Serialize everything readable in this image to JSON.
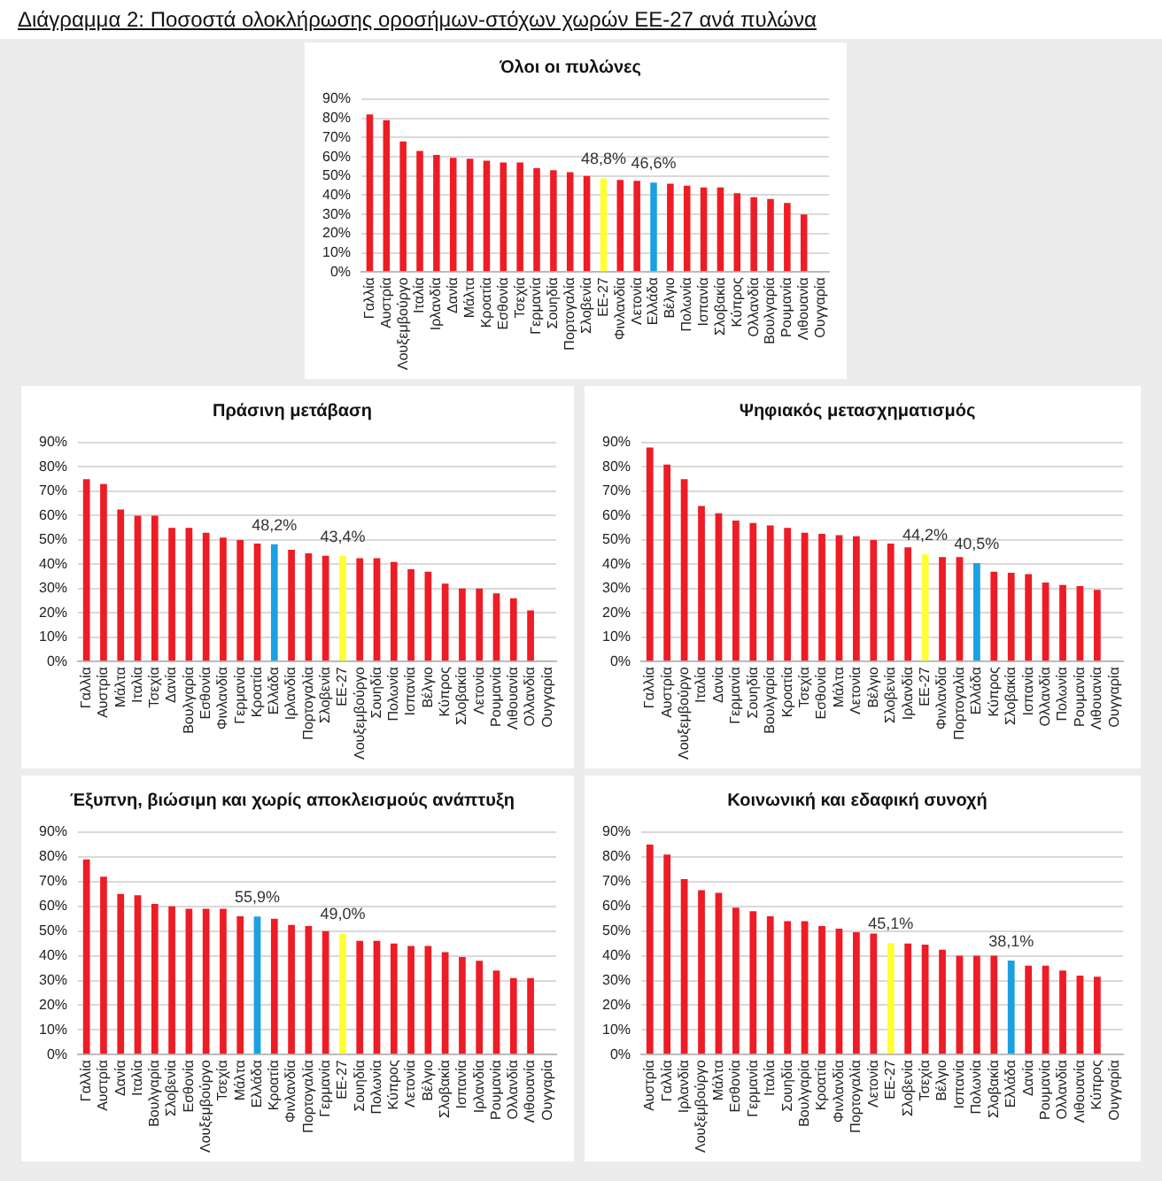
{
  "chart_data": [
    {
      "type": "bar",
      "title": "Όλοι οι πυλώνες",
      "annotations": [
        "Διάγραμμα 2: Ποσοστά ολοκλήρωσης οροσήμων-στόχων χωρών ΕΕ-27 ανά πυλώνα"
      ],
      "categories": [
        "Γαλλία",
        "Αυστρία",
        "Λουξεμβούργο",
        "Ιταλία",
        "Ιρλανδία",
        "Δανία",
        "Μάλτα",
        "Κροατία",
        "Εσθονία",
        "Τσεχία",
        "Γερμανία",
        "Σουηδία",
        "Πορτογαλία",
        "Σλοβενία",
        "ΕΕ-27",
        "Φινλανδία",
        "Λετονία",
        "Ελλάδα",
        "Βέλγιο",
        "Πολωνία",
        "Ισπανία",
        "Σλοβακία",
        "Κύπρος",
        "Ολλανδία",
        "Βουλγαρία",
        "Ρουμανία",
        "Λιθουανία",
        "Ουγγαρία"
      ],
      "values": [
        82,
        79,
        68,
        63,
        61,
        59.5,
        59,
        58,
        57,
        57,
        54,
        53,
        52,
        50,
        48.8,
        48,
        47.5,
        46.6,
        46,
        45,
        44,
        44,
        41,
        39,
        38,
        36,
        30,
        0
      ],
      "colors": [
        "#ee1c25",
        "#ee1c25",
        "#ee1c25",
        "#ee1c25",
        "#ee1c25",
        "#ee1c25",
        "#ee1c25",
        "#ee1c25",
        "#ee1c25",
        "#ee1c25",
        "#ee1c25",
        "#ee1c25",
        "#ee1c25",
        "#ee1c25",
        "#ffff33",
        "#ee1c25",
        "#ee1c25",
        "#1ba1e2",
        "#ee1c25",
        "#ee1c25",
        "#ee1c25",
        "#ee1c25",
        "#ee1c25",
        "#ee1c25",
        "#ee1c25",
        "#ee1c25",
        "#ee1c25",
        "#ee1c25"
      ],
      "value_labels": [
        null,
        null,
        null,
        null,
        null,
        null,
        null,
        null,
        null,
        null,
        null,
        null,
        null,
        null,
        "48,8%",
        null,
        null,
        "46,6%",
        null,
        null,
        null,
        null,
        null,
        null,
        null,
        null,
        null,
        null
      ],
      "ylim": [
        0,
        90
      ],
      "yticks": [
        {
          "value": 0,
          "label": "0%"
        },
        {
          "value": 10,
          "label": "10%"
        },
        {
          "value": 20,
          "label": "20%"
        },
        {
          "value": 30,
          "label": "30%"
        },
        {
          "value": 40,
          "label": "40%"
        },
        {
          "value": 50,
          "label": "50%"
        },
        {
          "value": 60,
          "label": "60%"
        },
        {
          "value": 70,
          "label": "70%"
        },
        {
          "value": 80,
          "label": "80%"
        },
        {
          "value": 90,
          "label": "90%"
        }
      ],
      "grid": "y",
      "legend": false
    },
    {
      "type": "bar",
      "title": "Πράσινη μετάβαση",
      "categories": [
        "Γαλλία",
        "Αυστρία",
        "Μάλτα",
        "Ιταλία",
        "Τσεχία",
        "Δανία",
        "Βουλγαρία",
        "Εσθονία",
        "Φινλανδία",
        "Γερμανία",
        "Κροατία",
        "Ελλάδα",
        "Ιρλανδία",
        "Πορτογαλία",
        "Σλοβενία",
        "ΕΕ-27",
        "Λουξεμβούργο",
        "Σουηδία",
        "Πολωνία",
        "Ισπανία",
        "Βέλγιο",
        "Κύπρος",
        "Σλοβακία",
        "Λετονία",
        "Ρουμανία",
        "Λιθουανία",
        "Ολλανδία",
        "Ουγγαρία"
      ],
      "values": [
        75,
        73,
        62.5,
        60,
        60,
        55,
        55,
        53,
        51,
        50,
        48.5,
        48.2,
        46,
        44.5,
        43.5,
        43.4,
        42.5,
        42.5,
        41,
        38,
        37,
        32,
        30,
        30,
        28,
        26,
        21,
        0
      ],
      "colors": [
        "#ee1c25",
        "#ee1c25",
        "#ee1c25",
        "#ee1c25",
        "#ee1c25",
        "#ee1c25",
        "#ee1c25",
        "#ee1c25",
        "#ee1c25",
        "#ee1c25",
        "#ee1c25",
        "#1ba1e2",
        "#ee1c25",
        "#ee1c25",
        "#ee1c25",
        "#ffff33",
        "#ee1c25",
        "#ee1c25",
        "#ee1c25",
        "#ee1c25",
        "#ee1c25",
        "#ee1c25",
        "#ee1c25",
        "#ee1c25",
        "#ee1c25",
        "#ee1c25",
        "#ee1c25",
        "#ee1c25"
      ],
      "value_labels": [
        null,
        null,
        null,
        null,
        null,
        null,
        null,
        null,
        null,
        null,
        null,
        "48,2%",
        null,
        null,
        null,
        "43,4%",
        null,
        null,
        null,
        null,
        null,
        null,
        null,
        null,
        null,
        null,
        null,
        null
      ],
      "ylim": [
        0,
        90
      ],
      "yticks": [
        {
          "value": 0,
          "label": "0%"
        },
        {
          "value": 10,
          "label": "10%"
        },
        {
          "value": 20,
          "label": "20%"
        },
        {
          "value": 30,
          "label": "30%"
        },
        {
          "value": 40,
          "label": "40%"
        },
        {
          "value": 50,
          "label": "50%"
        },
        {
          "value": 60,
          "label": "60%"
        },
        {
          "value": 70,
          "label": "70%"
        },
        {
          "value": 80,
          "label": "80%"
        },
        {
          "value": 90,
          "label": "90%"
        }
      ],
      "grid": "y",
      "legend": false
    },
    {
      "type": "bar",
      "title": "Ψηφιακός μετασχηματισμός",
      "categories": [
        "Γαλλία",
        "Αυστρία",
        "Λουξεμβούργο",
        "Ιταλία",
        "Δανία",
        "Γερμανία",
        "Σουηδία",
        "Βουλγαρία",
        "Κροατία",
        "Τσεχία",
        "Εσθονία",
        "Μάλτα",
        "Λετονία",
        "Βέλγιο",
        "Σλοβενία",
        "Ιρλανδία",
        "ΕΕ-27",
        "Φινλανδία",
        "Πορτογαλία",
        "Ελλάδα",
        "Κύπρος",
        "Σλοβακία",
        "Ισπανία",
        "Ολλανδία",
        "Πολωνία",
        "Ρουμανία",
        "Λιθουανία",
        "Ουγγαρία"
      ],
      "values": [
        88,
        81,
        75,
        64,
        61,
        58,
        57,
        56,
        55,
        53,
        52.5,
        52,
        51.5,
        50,
        48.5,
        47,
        44.2,
        43,
        43,
        40.5,
        37,
        36.5,
        36,
        32.5,
        31.5,
        31,
        29.5,
        0
      ],
      "colors": [
        "#ee1c25",
        "#ee1c25",
        "#ee1c25",
        "#ee1c25",
        "#ee1c25",
        "#ee1c25",
        "#ee1c25",
        "#ee1c25",
        "#ee1c25",
        "#ee1c25",
        "#ee1c25",
        "#ee1c25",
        "#ee1c25",
        "#ee1c25",
        "#ee1c25",
        "#ee1c25",
        "#ffff33",
        "#ee1c25",
        "#ee1c25",
        "#1ba1e2",
        "#ee1c25",
        "#ee1c25",
        "#ee1c25",
        "#ee1c25",
        "#ee1c25",
        "#ee1c25",
        "#ee1c25",
        "#ee1c25"
      ],
      "value_labels": [
        null,
        null,
        null,
        null,
        null,
        null,
        null,
        null,
        null,
        null,
        null,
        null,
        null,
        null,
        null,
        null,
        "44,2%",
        null,
        null,
        "40,5%",
        null,
        null,
        null,
        null,
        null,
        null,
        null,
        null
      ],
      "ylim": [
        0,
        90
      ],
      "yticks": [
        {
          "value": 0,
          "label": "0%"
        },
        {
          "value": 10,
          "label": "10%"
        },
        {
          "value": 20,
          "label": "20%"
        },
        {
          "value": 30,
          "label": "30%"
        },
        {
          "value": 40,
          "label": "40%"
        },
        {
          "value": 50,
          "label": "50%"
        },
        {
          "value": 60,
          "label": "60%"
        },
        {
          "value": 70,
          "label": "70%"
        },
        {
          "value": 80,
          "label": "80%"
        },
        {
          "value": 90,
          "label": "90%"
        }
      ],
      "grid": "y",
      "legend": false
    },
    {
      "type": "bar",
      "title": "Έξυπνη, βιώσιμη και χωρίς αποκλεισμούς ανάπτυξη",
      "categories": [
        "Γαλλία",
        "Αυστρία",
        "Δανία",
        "Ιταλία",
        "Βουλγαρία",
        "Σλοβενία",
        "Εσθονία",
        "Λουξεμβούργο",
        "Τσεχία",
        "Μάλτα",
        "Ελλάδα",
        "Κροατία",
        "Φινλανδία",
        "Πορτογαλία",
        "Γερμανία",
        "ΕΕ-27",
        "Σουηδία",
        "Πολωνία",
        "Κύπρος",
        "Λετονία",
        "Βέλγιο",
        "Σλοβακία",
        "Ισπανία",
        "Ιρλανδία",
        "Ρουμανία",
        "Ολλανδία",
        "Λιθουανία",
        "Ουγγαρία"
      ],
      "values": [
        79,
        72,
        65,
        64.5,
        61,
        60,
        59,
        59,
        59,
        56,
        55.9,
        55,
        52.5,
        52,
        50,
        49.0,
        46,
        46,
        45,
        44,
        44,
        41.5,
        39.5,
        38,
        34,
        31,
        31,
        0
      ],
      "colors": [
        "#ee1c25",
        "#ee1c25",
        "#ee1c25",
        "#ee1c25",
        "#ee1c25",
        "#ee1c25",
        "#ee1c25",
        "#ee1c25",
        "#ee1c25",
        "#ee1c25",
        "#1ba1e2",
        "#ee1c25",
        "#ee1c25",
        "#ee1c25",
        "#ee1c25",
        "#ffff33",
        "#ee1c25",
        "#ee1c25",
        "#ee1c25",
        "#ee1c25",
        "#ee1c25",
        "#ee1c25",
        "#ee1c25",
        "#ee1c25",
        "#ee1c25",
        "#ee1c25",
        "#ee1c25",
        "#ee1c25"
      ],
      "value_labels": [
        null,
        null,
        null,
        null,
        null,
        null,
        null,
        null,
        null,
        null,
        "55,9%",
        null,
        null,
        null,
        null,
        "49,0%",
        null,
        null,
        null,
        null,
        null,
        null,
        null,
        null,
        null,
        null,
        null,
        null
      ],
      "ylim": [
        0,
        90
      ],
      "yticks": [
        {
          "value": 0,
          "label": "0%"
        },
        {
          "value": 10,
          "label": "10%"
        },
        {
          "value": 20,
          "label": "20%"
        },
        {
          "value": 30,
          "label": "30%"
        },
        {
          "value": 40,
          "label": "40%"
        },
        {
          "value": 50,
          "label": "50%"
        },
        {
          "value": 60,
          "label": "60%"
        },
        {
          "value": 70,
          "label": "70%"
        },
        {
          "value": 80,
          "label": "80%"
        },
        {
          "value": 90,
          "label": "90%"
        }
      ],
      "grid": "y",
      "legend": false
    },
    {
      "type": "bar",
      "title": "Κοινωνική και εδαφική συνοχή",
      "categories": [
        "Αυστρία",
        "Γαλλία",
        "Ιρλανδία",
        "Λουξεμβούργο",
        "Μάλτα",
        "Εσθονία",
        "Γερμανία",
        "Ιταλία",
        "Σουηδία",
        "Βουλγαρία",
        "Κροατία",
        "Φινλανδία",
        "Πορτογαλία",
        "Λετονία",
        "ΕΕ-27",
        "Σλοβενία",
        "Τσεχία",
        "Βέλγιο",
        "Ισπανία",
        "Πολωνία",
        "Σλοβακία",
        "Ελλάδα",
        "Δανία",
        "Ρουμανία",
        "Ολλανδία",
        "Λιθουανία",
        "Κύπρος",
        "Ουγγαρία"
      ],
      "values": [
        85,
        81,
        71,
        66.5,
        65.5,
        59.5,
        58,
        56,
        54,
        54,
        52,
        51,
        49.5,
        49,
        45.1,
        45,
        44.5,
        42.5,
        40,
        40,
        40,
        38.1,
        36,
        36,
        34,
        32,
        31.5,
        0
      ],
      "colors": [
        "#ee1c25",
        "#ee1c25",
        "#ee1c25",
        "#ee1c25",
        "#ee1c25",
        "#ee1c25",
        "#ee1c25",
        "#ee1c25",
        "#ee1c25",
        "#ee1c25",
        "#ee1c25",
        "#ee1c25",
        "#ee1c25",
        "#ee1c25",
        "#ffff33",
        "#ee1c25",
        "#ee1c25",
        "#ee1c25",
        "#ee1c25",
        "#ee1c25",
        "#ee1c25",
        "#1ba1e2",
        "#ee1c25",
        "#ee1c25",
        "#ee1c25",
        "#ee1c25",
        "#ee1c25",
        "#ee1c25"
      ],
      "value_labels": [
        null,
        null,
        null,
        null,
        null,
        null,
        null,
        null,
        null,
        null,
        null,
        null,
        null,
        null,
        "45,1%",
        null,
        null,
        null,
        null,
        null,
        null,
        "38,1%",
        null,
        null,
        null,
        null,
        null,
        null
      ],
      "ylim": [
        0,
        90
      ],
      "yticks": [
        {
          "value": 0,
          "label": "0%"
        },
        {
          "value": 10,
          "label": "10%"
        },
        {
          "value": 20,
          "label": "20%"
        },
        {
          "value": 30,
          "label": "30%"
        },
        {
          "value": 40,
          "label": "40%"
        },
        {
          "value": 50,
          "label": "50%"
        },
        {
          "value": 60,
          "label": "60%"
        },
        {
          "value": 70,
          "label": "70%"
        },
        {
          "value": 80,
          "label": "80%"
        },
        {
          "value": 90,
          "label": "90%"
        }
      ],
      "grid": "y",
      "legend": false
    }
  ]
}
